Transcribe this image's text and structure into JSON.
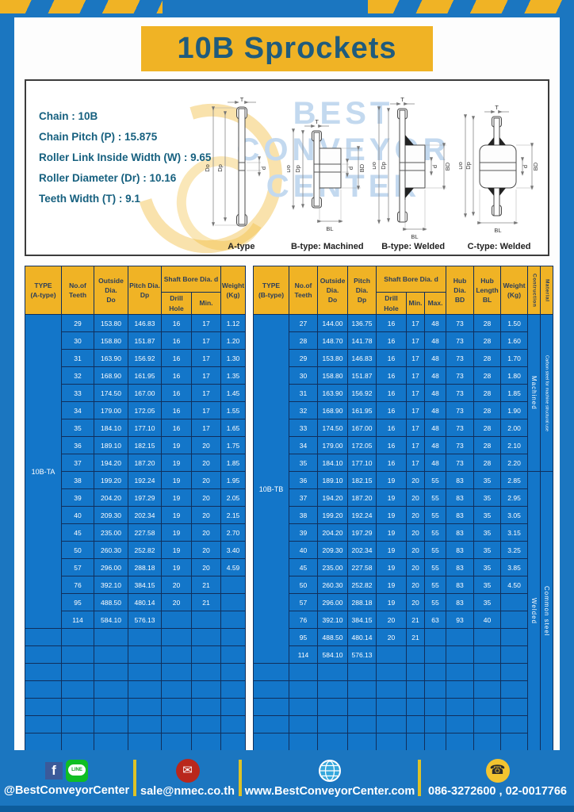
{
  "page_title": "10B Sprockets",
  "specs": {
    "lines": [
      "Chain : 10B",
      "Chain Pitch (P) : 15.875",
      "Roller Link Inside Width (W) : 9.65",
      "Roller Diameter (Dr) : 10.16",
      "Teeth Width (T) : 9.1"
    ]
  },
  "diagrams": {
    "watermark": "BEST\nCONVEYOR\nCENTER",
    "captions": [
      "A-type",
      "B-type: Machined",
      "B-type: Welded",
      "C-type: Welded"
    ],
    "labels": {
      "t": "T",
      "do": "Do",
      "dp": "Dp",
      "d": "d",
      "bd": "BD",
      "bl": "BL"
    }
  },
  "table_a": {
    "header": {
      "type": "TYPE\n(A-type)",
      "teeth": "No.of\nTeeth",
      "outside": "Outside\nDia.\nDo",
      "pitch": "Pitch Dia.\nDp",
      "shaft_bore": "Shaft Bore Dia. d",
      "drill": "Drill Hole",
      "min": "Min.",
      "weight": "Weight\n(Kg)"
    },
    "type_label": "10B-TA",
    "rows": [
      [
        "29",
        "153.80",
        "146.83",
        "16",
        "17",
        "1.12"
      ],
      [
        "30",
        "158.80",
        "151.87",
        "16",
        "17",
        "1.20"
      ],
      [
        "31",
        "163.90",
        "156.92",
        "16",
        "17",
        "1.30"
      ],
      [
        "32",
        "168.90",
        "161.95",
        "16",
        "17",
        "1.35"
      ],
      [
        "33",
        "174.50",
        "167.00",
        "16",
        "17",
        "1.45"
      ],
      [
        "34",
        "179.00",
        "172.05",
        "16",
        "17",
        "1.55"
      ],
      [
        "35",
        "184.10",
        "177.10",
        "16",
        "17",
        "1.65"
      ],
      [
        "36",
        "189.10",
        "182.15",
        "19",
        "20",
        "1.75"
      ],
      [
        "37",
        "194.20",
        "187.20",
        "19",
        "20",
        "1.85"
      ],
      [
        "38",
        "199.20",
        "192.24",
        "19",
        "20",
        "1.95"
      ],
      [
        "39",
        "204.20",
        "197.29",
        "19",
        "20",
        "2.05"
      ],
      [
        "40",
        "209.30",
        "202.34",
        "19",
        "20",
        "2.15"
      ],
      [
        "45",
        "235.00",
        "227.58",
        "19",
        "20",
        "2.70"
      ],
      [
        "50",
        "260.30",
        "252.82",
        "19",
        "20",
        "3.40"
      ],
      [
        "57",
        "296.00",
        "288.18",
        "19",
        "20",
        "4.59"
      ],
      [
        "76",
        "392.10",
        "384.15",
        "20",
        "21",
        ""
      ],
      [
        "95",
        "488.50",
        "480.14",
        "20",
        "21",
        ""
      ],
      [
        "114",
        "584.10",
        "576.13",
        "",
        "",
        ""
      ]
    ],
    "empty_rows": 7
  },
  "table_b": {
    "header": {
      "type": "TYPE\n(B-type)",
      "teeth": "No.of\nTeeth",
      "outside": "Outside\nDia.\nDo",
      "pitch": "Pitch Dia.\nDp",
      "shaft_bore": "Shaft Bore Dia. d",
      "drill": "Drill Hole",
      "min": "Min.",
      "max": "Max.",
      "hub_dia": "Hub Dia.\nBD",
      "hub_len": "Hub\nLength\nBL",
      "weight": "Weight\n(Kg)",
      "construction": "Contruction",
      "material": "Material"
    },
    "type_label": "10B-TB",
    "rows": [
      [
        "27",
        "144.00",
        "136.75",
        "16",
        "17",
        "48",
        "73",
        "28",
        "1.50"
      ],
      [
        "28",
        "148.70",
        "141.78",
        "16",
        "17",
        "48",
        "73",
        "28",
        "1.60"
      ],
      [
        "29",
        "153.80",
        "146.83",
        "16",
        "17",
        "48",
        "73",
        "28",
        "1.70"
      ],
      [
        "30",
        "158.80",
        "151.87",
        "16",
        "17",
        "48",
        "73",
        "28",
        "1.80"
      ],
      [
        "31",
        "163.90",
        "156.92",
        "16",
        "17",
        "48",
        "73",
        "28",
        "1.85"
      ],
      [
        "32",
        "168.90",
        "161.95",
        "16",
        "17",
        "48",
        "73",
        "28",
        "1.90"
      ],
      [
        "33",
        "174.50",
        "167.00",
        "16",
        "17",
        "48",
        "73",
        "28",
        "2.00"
      ],
      [
        "34",
        "179.00",
        "172.05",
        "16",
        "17",
        "48",
        "73",
        "28",
        "2.10"
      ],
      [
        "35",
        "184.10",
        "177.10",
        "16",
        "17",
        "48",
        "73",
        "28",
        "2.20"
      ],
      [
        "36",
        "189.10",
        "182.15",
        "19",
        "20",
        "55",
        "83",
        "35",
        "2.85"
      ],
      [
        "37",
        "194.20",
        "187.20",
        "19",
        "20",
        "55",
        "83",
        "35",
        "2.95"
      ],
      [
        "38",
        "199.20",
        "192.24",
        "19",
        "20",
        "55",
        "83",
        "35",
        "3.05"
      ],
      [
        "39",
        "204.20",
        "197.29",
        "19",
        "20",
        "55",
        "83",
        "35",
        "3.15"
      ],
      [
        "40",
        "209.30",
        "202.34",
        "19",
        "20",
        "55",
        "83",
        "35",
        "3.25"
      ],
      [
        "45",
        "235.00",
        "227.58",
        "19",
        "20",
        "55",
        "83",
        "35",
        "3.85"
      ],
      [
        "50",
        "260.30",
        "252.82",
        "19",
        "20",
        "55",
        "83",
        "35",
        "4.50"
      ],
      [
        "57",
        "296.00",
        "288.18",
        "19",
        "20",
        "55",
        "83",
        "35",
        ""
      ],
      [
        "76",
        "392.10",
        "384.15",
        "20",
        "21",
        "63",
        "93",
        "40",
        ""
      ],
      [
        "95",
        "488.50",
        "480.14",
        "20",
        "21",
        "",
        "",
        "",
        ""
      ],
      [
        "114",
        "584.10",
        "576.13",
        "",
        "",
        "",
        "",
        "",
        ""
      ]
    ],
    "empty_rows": 5,
    "sections": [
      {
        "construction": "Machined",
        "material": "Carbon steel for  machine structural use",
        "span": 9
      },
      {
        "construction": "Welded",
        "material": "Common steel",
        "span": 16
      }
    ]
  },
  "footer": {
    "social": "@BestConveyorCenter",
    "email": "sale@nmec.co.th",
    "website": "www.BestConveyorCenter.com",
    "phone": "086-3272600 , 02-0017766",
    "glyphs": {
      "facebook": "f",
      "line": "LINE",
      "mail": "✉",
      "phone": "☎"
    }
  },
  "colors": {
    "frame_blue": "#1b76c0",
    "cell_blue": "#1376c9",
    "border_navy": "#102f5c",
    "accent_yellow": "#f0b325",
    "title_text": "#1f5b7d",
    "footer_strip": "#0d5c9c"
  }
}
